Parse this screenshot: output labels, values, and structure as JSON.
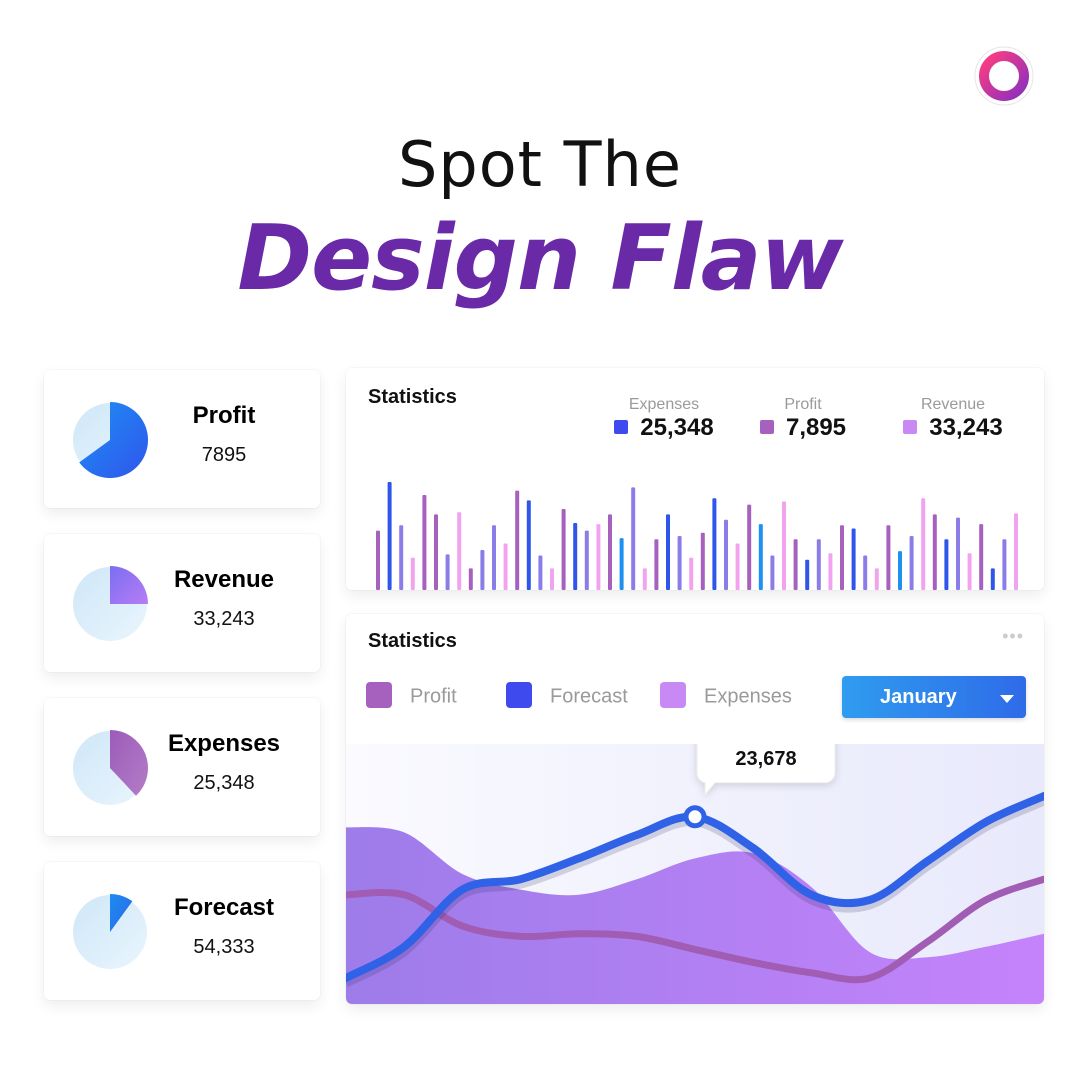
{
  "heading": {
    "line1": "Spot The",
    "line2": "Design Flaw"
  },
  "colors": {
    "profit": "#a561bd",
    "forecast": "#3e49ee",
    "expenses": "#c889f5",
    "revenue": "#c889f5",
    "title_purple": "#6a2aa8",
    "dropdown": "#2f7eea"
  },
  "stat_cards": [
    {
      "title": "Profit",
      "value": "7895",
      "fraction": 0.65
    },
    {
      "title": "Revenue",
      "value": "33,243",
      "fraction": 0.25
    },
    {
      "title": "Expenses",
      "value": "25,348",
      "fraction": 0.38
    },
    {
      "title": "Forecast",
      "value": "54,333",
      "fraction": 0.1
    }
  ],
  "bar_panel": {
    "title": "Statistics",
    "legend": [
      {
        "label": "Expenses",
        "value": "25,348",
        "icon": "square-swatch-blue"
      },
      {
        "label": "Profit",
        "value": "7,895",
        "icon": "square-swatch-purple"
      },
      {
        "label": "Revenue",
        "value": "33,243",
        "icon": "square-swatch-lavender"
      }
    ]
  },
  "line_panel": {
    "title": "Statistics",
    "more_icon": "•••",
    "legend": [
      {
        "label": "Profit",
        "icon": "square-swatch-purple"
      },
      {
        "label": "Forecast",
        "icon": "square-swatch-blue"
      },
      {
        "label": "Expenses",
        "icon": "square-swatch-lavender"
      }
    ],
    "dropdown_value": "January",
    "tooltip_value": "23,678"
  },
  "chart_data": [
    {
      "type": "bar",
      "grid": false,
      "bars": [
        [
          0.55,
          "profit"
        ],
        [
          1.0,
          "forecast"
        ],
        [
          0.6,
          "forecast2"
        ],
        [
          0.3,
          "pink"
        ],
        [
          0.88,
          "profit"
        ],
        [
          0.7,
          "profit"
        ],
        [
          0.33,
          "forecast2"
        ],
        [
          0.72,
          "pink"
        ],
        [
          0.2,
          "profit"
        ],
        [
          0.37,
          "forecast2"
        ],
        [
          0.6,
          "forecast2"
        ],
        [
          0.43,
          "pink"
        ],
        [
          0.92,
          "profit"
        ],
        [
          0.83,
          "forecast"
        ],
        [
          0.32,
          "forecast2"
        ],
        [
          0.2,
          "pink"
        ],
        [
          0.75,
          "profit"
        ],
        [
          0.62,
          "forecast"
        ],
        [
          0.55,
          "forecast2"
        ],
        [
          0.61,
          "pink"
        ],
        [
          0.7,
          "profit"
        ],
        [
          0.48,
          "forecast"
        ],
        [
          0.95,
          "forecast2"
        ],
        [
          0.2,
          "pink"
        ],
        [
          0.47,
          "profit"
        ],
        [
          0.7,
          "forecast"
        ],
        [
          0.5,
          "forecast2"
        ],
        [
          0.3,
          "pink"
        ],
        [
          0.53,
          "profit"
        ],
        [
          0.85,
          "forecast"
        ],
        [
          0.65,
          "forecast2"
        ],
        [
          0.43,
          "pink"
        ],
        [
          0.79,
          "profit"
        ],
        [
          0.61,
          "forecast"
        ],
        [
          0.32,
          "forecast2"
        ],
        [
          0.82,
          "pink"
        ],
        [
          0.47,
          "profit"
        ],
        [
          0.28,
          "forecast"
        ],
        [
          0.47,
          "forecast2"
        ],
        [
          0.34,
          "pink"
        ],
        [
          0.6,
          "profit"
        ],
        [
          0.57,
          "forecast"
        ],
        [
          0.32,
          "forecast2"
        ],
        [
          0.2,
          "pink"
        ],
        [
          0.6,
          "profit"
        ],
        [
          0.36,
          "forecast"
        ],
        [
          0.5,
          "forecast2"
        ],
        [
          0.85,
          "pink"
        ],
        [
          0.7,
          "profit"
        ],
        [
          0.47,
          "forecast"
        ],
        [
          0.67,
          "forecast2"
        ],
        [
          0.34,
          "pink"
        ],
        [
          0.61,
          "profit"
        ],
        [
          0.2,
          "forecast"
        ],
        [
          0.47,
          "forecast2"
        ],
        [
          0.71,
          "pink"
        ]
      ]
    },
    {
      "type": "area",
      "grid": false,
      "series": [
        {
          "name": "Expenses",
          "values": [
            0.68,
            0.66,
            0.5,
            0.44,
            0.42,
            0.48,
            0.56,
            0.58,
            0.45,
            0.2,
            0.18,
            0.22,
            0.27
          ]
        },
        {
          "name": "Forecast",
          "values": [
            0.1,
            0.22,
            0.44,
            0.48,
            0.56,
            0.65,
            0.72,
            0.6,
            0.42,
            0.4,
            0.55,
            0.7,
            0.8
          ]
        },
        {
          "name": "Profit",
          "values": [
            0.42,
            0.42,
            0.3,
            0.26,
            0.27,
            0.26,
            0.21,
            0.16,
            0.12,
            0.1,
            0.24,
            0.4,
            0.48
          ]
        }
      ],
      "highlight": {
        "series": "Forecast",
        "index": 6,
        "label": "23,678"
      }
    }
  ]
}
